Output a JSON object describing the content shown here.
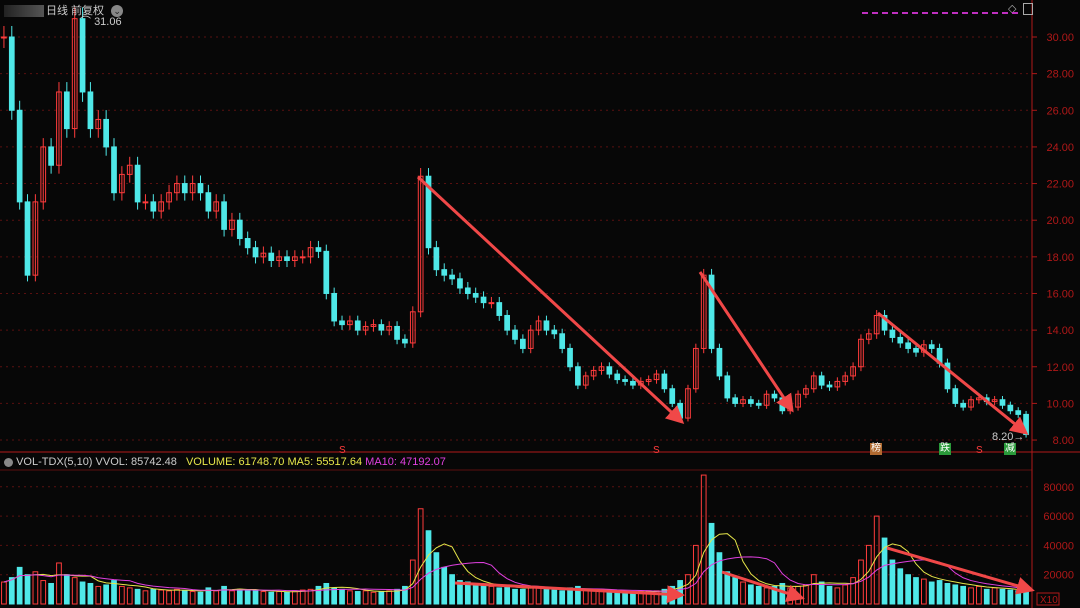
{
  "header": {
    "period_label": "日线 前复权",
    "dropdown_icon": "chevron-down-icon"
  },
  "price_annotations": {
    "high": "31.06",
    "low": "8.20"
  },
  "volume_header": {
    "indicator": "VOL-TDX(5,10)",
    "vvol": "VVOL: 85742.48",
    "volume": "VOLUME: 61748.70",
    "ma5": "MA5: 55517.64",
    "ma10": "MA10: 47192.07"
  },
  "markers": [
    {
      "text": "S",
      "kind": "signal"
    },
    {
      "text": "S",
      "kind": "signal"
    },
    {
      "text": "S",
      "kind": "signal"
    },
    {
      "text": "榜",
      "kind": "badge"
    },
    {
      "text": "跌",
      "kind": "badge"
    },
    {
      "text": "减",
      "kind": "badge"
    }
  ],
  "colors": {
    "up": "#ff3c3c",
    "down": "#4fe8e8",
    "axis": "#b01818",
    "ma5": "#e6e64a",
    "ma10": "#e040e0",
    "arrow": "#f04848"
  },
  "chart_data": [
    {
      "type": "candlestick",
      "ylim": [
        7.2,
        31.5
      ],
      "yticks": [
        "30.00",
        "28.00",
        "26.00",
        "24.00",
        "22.00",
        "20.00",
        "18.00",
        "16.00",
        "14.00",
        "12.00",
        "10.00",
        "8.00"
      ],
      "closes": [
        30,
        26,
        21,
        17,
        21,
        24,
        23,
        27,
        25,
        31,
        27,
        25,
        25.5,
        24,
        21.5,
        22.5,
        23,
        21,
        21,
        20.5,
        21,
        21.5,
        22,
        21.5,
        22,
        21.5,
        20.5,
        21,
        19.5,
        20,
        19,
        18.5,
        18,
        18.2,
        17.8,
        18,
        17.8,
        18,
        18,
        18.5,
        18.3,
        16,
        14.5,
        14.3,
        14.5,
        14,
        14.2,
        14.3,
        14,
        14.2,
        13.5,
        13.3,
        15,
        22.4,
        18.5,
        17.3,
        17,
        16.8,
        16.3,
        16,
        15.8,
        15.5,
        15.5,
        14.8,
        14,
        13.5,
        13,
        14,
        14.5,
        14,
        13.8,
        13,
        12,
        11,
        11.5,
        11.8,
        12,
        11.6,
        11.3,
        11.2,
        11,
        11.2,
        11.3,
        11.6,
        10.8,
        10,
        9.2,
        10.8,
        13,
        17,
        13,
        11.5,
        10.3,
        10,
        10.2,
        10,
        9.9,
        10.5,
        10.3,
        9.6,
        9.8,
        10.5,
        10.8,
        11.5,
        11,
        10.9,
        11.2,
        11.5,
        12,
        13.5,
        13.8,
        14.8,
        14,
        13.6,
        13.3,
        13,
        12.8,
        13.2,
        13,
        12.2,
        10.8,
        10,
        9.8,
        10.2,
        10.3,
        10.1,
        10.2,
        9.9,
        9.6,
        9.4,
        8.3
      ]
    },
    {
      "type": "bar",
      "ylim": [
        0,
        90000
      ],
      "yticks": [
        "80000",
        "60000",
        "40000",
        "20000"
      ],
      "xtick_label": "X10",
      "values": [
        15000,
        18000,
        25000,
        20000,
        22000,
        16000,
        14000,
        28000,
        20000,
        18000,
        15000,
        14000,
        12000,
        13000,
        16000,
        12000,
        11000,
        10000,
        9000,
        10000,
        9500,
        9000,
        10000,
        9000,
        8500,
        8000,
        11000,
        9000,
        12000,
        9000,
        10000,
        9500,
        9000,
        8500,
        8000,
        8500,
        8000,
        9000,
        9500,
        10000,
        12000,
        14000,
        11000,
        10000,
        9000,
        8500,
        9000,
        8000,
        8500,
        9000,
        10000,
        12000,
        30000,
        65000,
        50000,
        35000,
        25000,
        20000,
        16000,
        15000,
        14000,
        13000,
        12000,
        11000,
        12000,
        10000,
        10000,
        11000,
        12000,
        10000,
        9500,
        9000,
        11000,
        12000,
        10000,
        9000,
        8500,
        9000,
        8500,
        8000,
        8000,
        8500,
        9000,
        9000,
        10000,
        12000,
        16000,
        20000,
        40000,
        88000,
        55000,
        35000,
        22000,
        18000,
        15000,
        13000,
        12000,
        11000,
        12000,
        14000,
        11000,
        12000,
        13000,
        20000,
        15000,
        12000,
        11000,
        13000,
        18000,
        30000,
        40000,
        60000,
        45000,
        30000,
        24000,
        20000,
        18000,
        17000,
        15000,
        16000,
        14000,
        13000,
        12000,
        11000,
        12000,
        10000,
        11000,
        10000,
        9500,
        9000,
        10000
      ]
    }
  ]
}
